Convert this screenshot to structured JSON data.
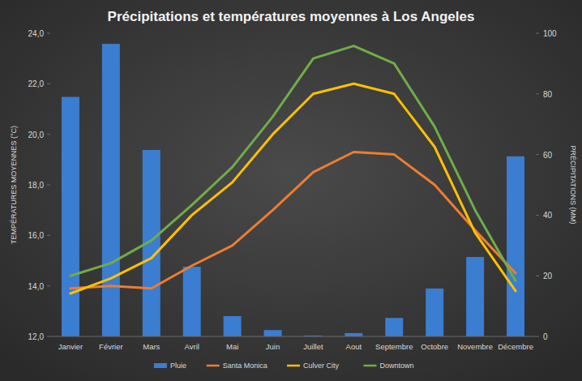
{
  "chart_data": {
    "type": "bar",
    "title": "Précipitations et températures moyennes à Los Angeles",
    "y_label": "TEMPÉRATURES MOYENNES (°C)",
    "y2_label": "PRÉCIPITATIONS (MM)",
    "categories": [
      "Janvier",
      "Février",
      "Mars",
      "Avril",
      "Mai",
      "Juin",
      "Juillet",
      "Aout",
      "Septembre",
      "Octobre",
      "Novembre",
      "Décembre"
    ],
    "series": [
      {
        "name": "Pluie",
        "type": "bar",
        "axis": "y2",
        "color": "#3b7dd0",
        "values": [
          79,
          96.5,
          61.5,
          23,
          6.7,
          2.1,
          0.3,
          1.1,
          6.1,
          15.8,
          26.2,
          59.4
        ]
      },
      {
        "name": "Santa Monica",
        "type": "line",
        "color": "#ed7d31",
        "values": [
          13.9,
          14.0,
          13.9,
          14.8,
          15.6,
          17.0,
          18.5,
          19.3,
          19.2,
          18.0,
          16.2,
          14.5
        ]
      },
      {
        "name": "Culver City",
        "type": "line",
        "color": "#ffc000",
        "values": [
          13.7,
          14.3,
          15.1,
          16.8,
          18.1,
          20.0,
          21.6,
          22.0,
          21.6,
          19.5,
          16.1,
          13.8
        ]
      },
      {
        "name": "Downtown",
        "type": "line",
        "color": "#70ad47",
        "values": [
          14.4,
          14.9,
          15.8,
          17.2,
          18.7,
          20.7,
          23.0,
          23.5,
          22.8,
          20.3,
          17.0,
          14.2
        ]
      }
    ],
    "ylim": [
      12,
      24
    ],
    "yticks": [
      {
        "value": 12,
        "label": "12,0"
      },
      {
        "value": 14,
        "label": "14,0"
      },
      {
        "value": 16,
        "label": "16,0"
      },
      {
        "value": 18,
        "label": "18,0"
      },
      {
        "value": 20,
        "label": "20,0"
      },
      {
        "value": 22,
        "label": "22,0"
      },
      {
        "value": 24,
        "label": "24,0"
      }
    ],
    "y2lim": [
      0,
      100
    ],
    "y2ticks": [
      0,
      20,
      40,
      60,
      80,
      100
    ],
    "grid": false,
    "legend": "bottom"
  }
}
